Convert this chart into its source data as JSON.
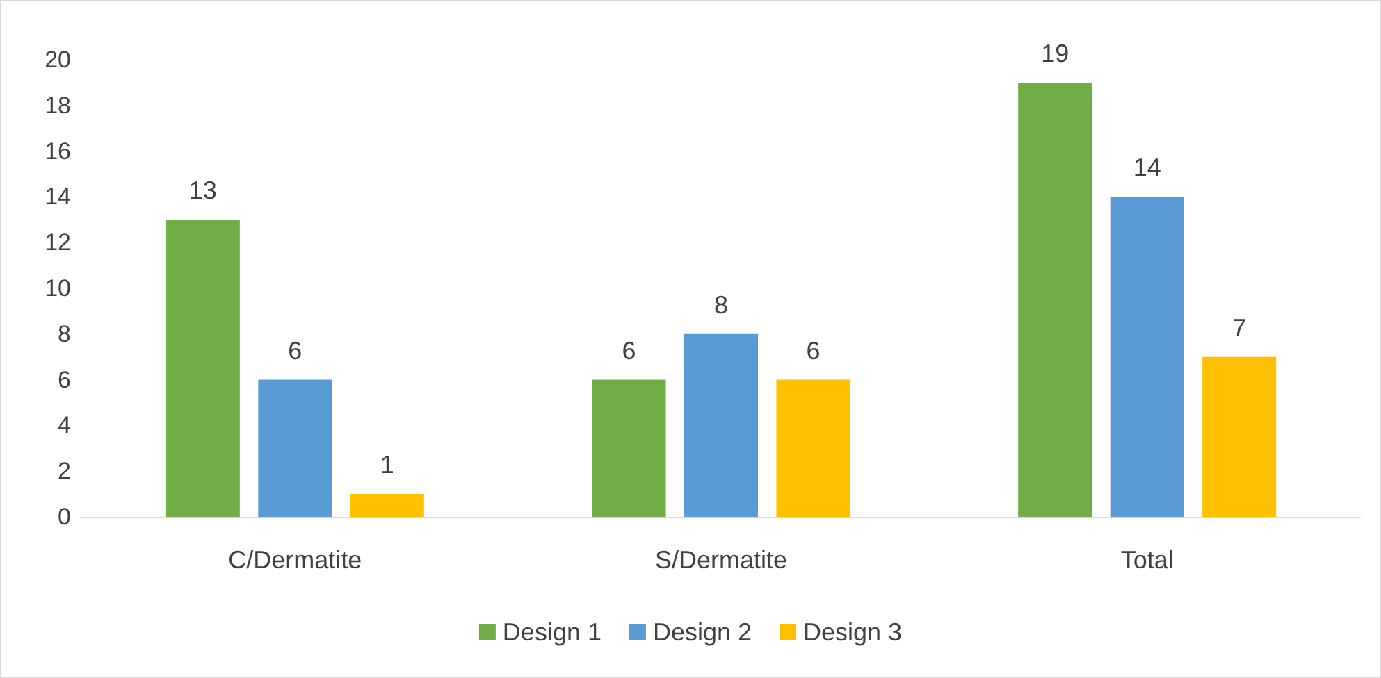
{
  "chart_data": {
    "type": "bar",
    "categories": [
      "C/Dermatite",
      "S/Dermatite",
      "Total"
    ],
    "series": [
      {
        "name": "Design 1",
        "color": "#70ad47",
        "values": [
          13,
          6,
          19
        ]
      },
      {
        "name": "Design 2",
        "color": "#5b9bd5",
        "values": [
          6,
          8,
          14
        ]
      },
      {
        "name": "Design 3",
        "color": "#ffc000",
        "values": [
          1,
          6,
          7
        ]
      }
    ],
    "ylim": [
      0,
      20
    ],
    "yticks": [
      0,
      2,
      4,
      6,
      8,
      10,
      12,
      14,
      16,
      18,
      20
    ],
    "grid": false,
    "legend": "bottom",
    "data_labels": true
  }
}
